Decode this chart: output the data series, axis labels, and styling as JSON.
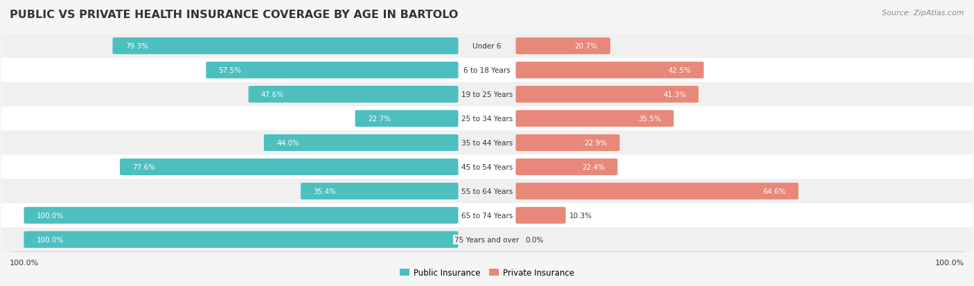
{
  "title": "PUBLIC VS PRIVATE HEALTH INSURANCE COVERAGE BY AGE IN BARTOLO",
  "source": "Source: ZipAtlas.com",
  "categories": [
    "Under 6",
    "6 to 18 Years",
    "19 to 25 Years",
    "25 to 34 Years",
    "35 to 44 Years",
    "45 to 54 Years",
    "55 to 64 Years",
    "65 to 74 Years",
    "75 Years and over"
  ],
  "public_values": [
    79.3,
    57.5,
    47.6,
    22.7,
    44.0,
    77.6,
    35.4,
    100.0,
    100.0
  ],
  "private_values": [
    20.7,
    42.5,
    41.3,
    35.5,
    22.9,
    22.4,
    64.6,
    10.3,
    0.0
  ],
  "public_color": "#4dbfbf",
  "private_color": "#e8887a",
  "public_label": "Public Insurance",
  "private_label": "Private Insurance",
  "bg_color": "#f5f5f5",
  "title_color": "#333333",
  "text_color": "#333333",
  "axis_label_left": "100.0%",
  "axis_label_right": "100.0%"
}
